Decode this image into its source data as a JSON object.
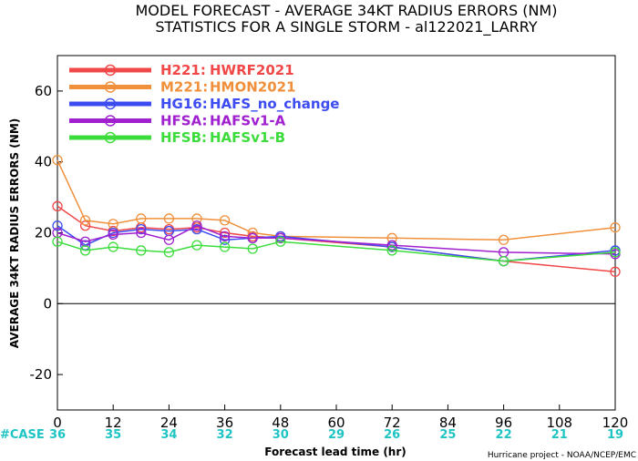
{
  "chart_data": {
    "type": "line",
    "title": "MODEL FORECAST - AVERAGE 34KT RADIUS ERRORS (NM)",
    "subtitle": "STATISTICS FOR A SINGLE STORM - al122021_LARRY",
    "xlabel": "Forecast lead time (hr)",
    "ylabel": "AVERAGE 34KT RADIUS ERRORS (NM)",
    "xlim": [
      0,
      120
    ],
    "ylim": [
      -30,
      70
    ],
    "x_ticks": [
      0,
      12,
      24,
      36,
      48,
      60,
      72,
      84,
      96,
      108,
      120
    ],
    "y_ticks": [
      -20,
      0,
      20,
      40,
      60
    ],
    "zero_line": true,
    "grid": false,
    "legend_position": "top-left",
    "case_label": "#CASE",
    "case_counts": [
      36,
      35,
      34,
      32,
      30,
      29,
      26,
      25,
      22,
      21,
      19
    ],
    "credit": "Hurricane project - NOAA/NCEP/EMC",
    "series": [
      {
        "name": "H221:",
        "label": "HWRF2021",
        "color": "#f04848",
        "x": [
          0,
          6,
          12,
          18,
          24,
          30,
          36,
          42,
          48,
          72,
          96,
          120
        ],
        "y": [
          27.5,
          22,
          20.5,
          21.5,
          21,
          21.5,
          20,
          19,
          18.5,
          16,
          12,
          9
        ]
      },
      {
        "name": "M221:",
        "label": "HMON2021",
        "color": "#f0903c",
        "x": [
          0,
          6,
          12,
          18,
          24,
          30,
          36,
          42,
          48,
          72,
          96,
          120
        ],
        "y": [
          40.5,
          23.5,
          22.5,
          24,
          24,
          24,
          23.5,
          20,
          19,
          18.5,
          18,
          21.5
        ]
      },
      {
        "name": "HG16:",
        "label": "HAFS_no_change",
        "color": "#3c4cf0",
        "x": [
          0,
          6,
          12,
          18,
          24,
          30,
          36,
          42,
          48,
          72,
          96,
          120
        ],
        "y": [
          22,
          16.5,
          20,
          21,
          20.5,
          21,
          18,
          18.5,
          19,
          16,
          12,
          15
        ]
      },
      {
        "name": "HFSA:",
        "label": "HAFSv1-A",
        "color": "#a020d0",
        "x": [
          0,
          6,
          12,
          18,
          24,
          30,
          36,
          42,
          48,
          72,
          96,
          120
        ],
        "y": [
          20,
          17.5,
          19.5,
          20,
          18,
          22,
          19,
          18.5,
          18.5,
          16.5,
          14.5,
          14
        ]
      },
      {
        "name": "HFSB:",
        "label": "HAFSv1-B",
        "color": "#3cdc3c",
        "x": [
          0,
          6,
          12,
          18,
          24,
          30,
          36,
          42,
          48,
          72,
          96,
          120
        ],
        "y": [
          17.5,
          15,
          16,
          15,
          14.5,
          16.5,
          16,
          15.5,
          17.5,
          15,
          12,
          14.5
        ]
      }
    ]
  }
}
